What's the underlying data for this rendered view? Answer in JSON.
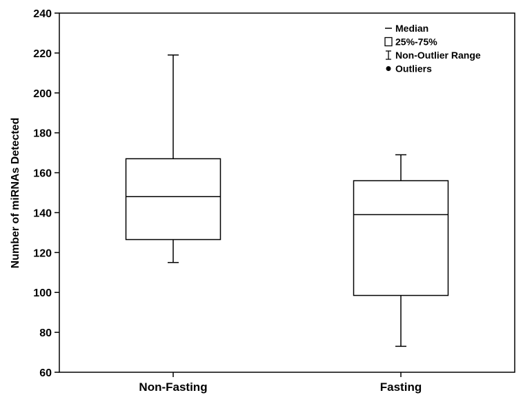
{
  "chart_data": {
    "type": "box",
    "ylabel": "Number of miRNAs Detected",
    "xlabel": "",
    "ylim": [
      60,
      240
    ],
    "yticks": [
      60,
      80,
      100,
      120,
      140,
      160,
      180,
      200,
      220,
      240
    ],
    "grid": false,
    "legend_position": "top-right",
    "categories": [
      "Non-Fasting",
      "Fasting"
    ],
    "boxes": [
      {
        "category": "Non-Fasting",
        "whisker_low": 115,
        "q1": 126.5,
        "median": 148,
        "q3": 167,
        "whisker_high": 219
      },
      {
        "category": "Fasting",
        "whisker_low": 73,
        "q1": 98.5,
        "median": 139,
        "q3": 156,
        "whisker_high": 169
      }
    ],
    "legend": [
      {
        "symbol": "median-line",
        "label": "Median"
      },
      {
        "symbol": "box",
        "label": "25%-75%"
      },
      {
        "symbol": "whisker",
        "label": "Non-Outlier Range"
      },
      {
        "symbol": "dot",
        "label": "Outliers"
      }
    ],
    "colors": {
      "stroke": "#000000",
      "fill": "#ffffff"
    }
  }
}
